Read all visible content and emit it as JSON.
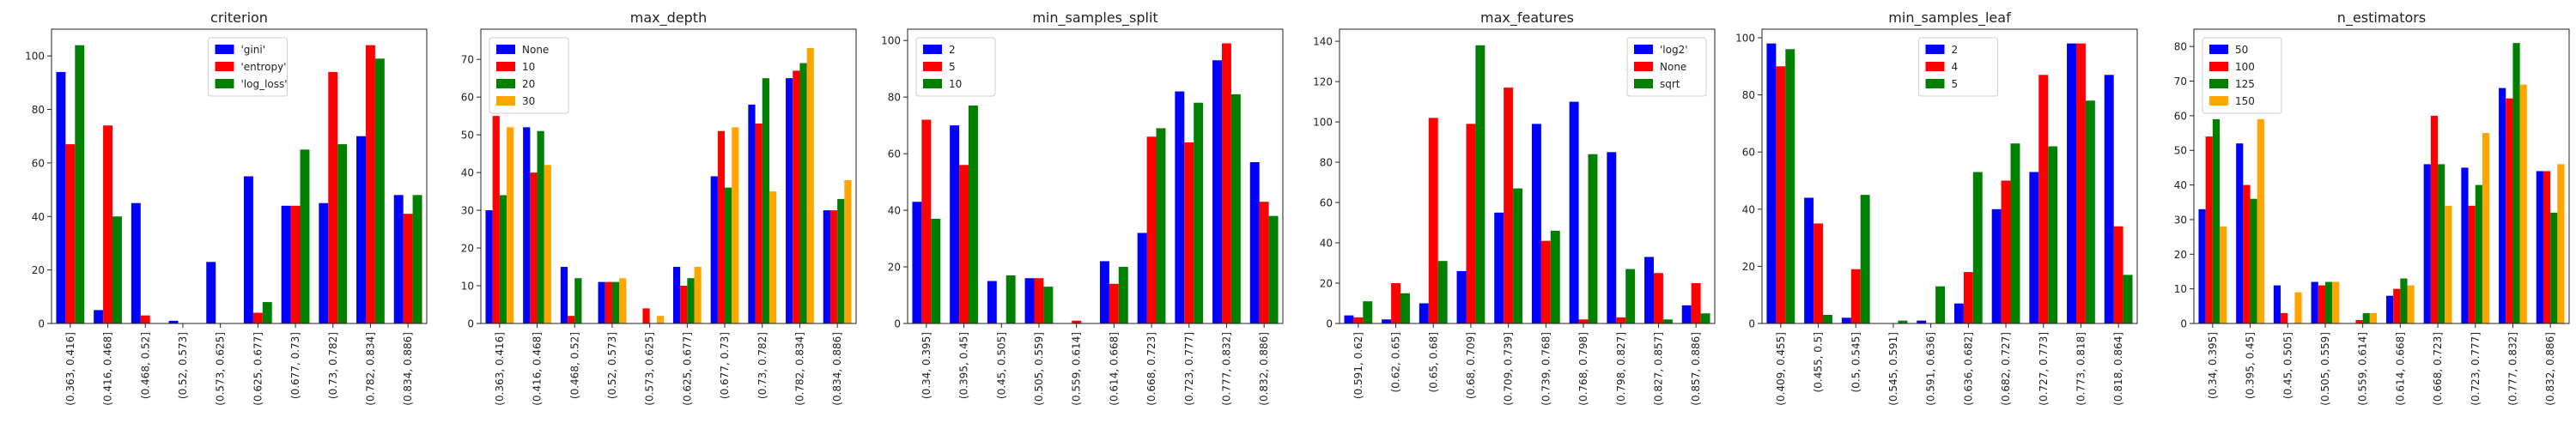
{
  "colors": {
    "blue": "#0000ff",
    "red": "#ff0000",
    "green": "#008000",
    "orange": "#ffa500"
  },
  "chart_data": [
    {
      "type": "bar",
      "title": "criterion",
      "ylim": [
        0,
        110
      ],
      "yticks": [
        0,
        20,
        40,
        60,
        80,
        100
      ],
      "legend_position": "top-center",
      "categories": [
        "(0.363, 0.416]",
        "(0.416, 0.468]",
        "(0.468, 0.52]",
        "(0.52, 0.573]",
        "(0.573, 0.625]",
        "(0.625, 0.677]",
        "(0.677, 0.73]",
        "(0.73, 0.782]",
        "(0.782, 0.834]",
        "(0.834, 0.886]"
      ],
      "series": [
        {
          "name": "'gini'",
          "color": "#0000ff",
          "values": [
            94,
            5,
            45,
            1,
            23,
            55,
            44,
            45,
            70,
            48
          ]
        },
        {
          "name": "'entropy'",
          "color": "#ff0000",
          "values": [
            67,
            74,
            3,
            0,
            0,
            4,
            44,
            94,
            104,
            41
          ]
        },
        {
          "name": "'log_loss'",
          "color": "#008000",
          "values": [
            104,
            40,
            0,
            0,
            0,
            8,
            65,
            67,
            99,
            48
          ]
        }
      ]
    },
    {
      "type": "bar",
      "title": "max_depth",
      "ylim": [
        0,
        78
      ],
      "yticks": [
        0,
        10,
        20,
        30,
        40,
        50,
        60,
        70
      ],
      "legend_position": "top-left",
      "categories": [
        "(0.363, 0.416]",
        "(0.416, 0.468]",
        "(0.468, 0.52]",
        "(0.52, 0.573]",
        "(0.573, 0.625]",
        "(0.625, 0.677]",
        "(0.677, 0.73]",
        "(0.73, 0.782]",
        "(0.782, 0.834]",
        "(0.834, 0.886]"
      ],
      "series": [
        {
          "name": "None",
          "color": "#0000ff",
          "values": [
            30,
            52,
            15,
            11,
            0,
            15,
            39,
            58,
            65,
            30
          ]
        },
        {
          "name": "10",
          "color": "#ff0000",
          "values": [
            55,
            40,
            2,
            11,
            4,
            10,
            51,
            53,
            67,
            30
          ]
        },
        {
          "name": "20",
          "color": "#008000",
          "values": [
            34,
            51,
            12,
            11,
            0,
            12,
            36,
            65,
            69,
            33
          ]
        },
        {
          "name": "30",
          "color": "#ffa500",
          "values": [
            52,
            42,
            0,
            12,
            2,
            15,
            52,
            35,
            73,
            38
          ]
        }
      ]
    },
    {
      "type": "bar",
      "title": "min_samples_split",
      "ylim": [
        0,
        104
      ],
      "yticks": [
        0,
        20,
        40,
        60,
        80,
        100
      ],
      "legend_position": "top-left",
      "categories": [
        "(0.34, 0.395]",
        "(0.395, 0.45]",
        "(0.45, 0.505]",
        "(0.505, 0.559]",
        "(0.559, 0.614]",
        "(0.614, 0.668]",
        "(0.668, 0.723]",
        "(0.723, 0.777]",
        "(0.777, 0.832]",
        "(0.832, 0.886]"
      ],
      "series": [
        {
          "name": "2",
          "color": "#0000ff",
          "values": [
            43,
            70,
            15,
            16,
            0,
            22,
            32,
            82,
            93,
            57
          ]
        },
        {
          "name": "5",
          "color": "#ff0000",
          "values": [
            72,
            56,
            0,
            16,
            1,
            14,
            66,
            64,
            99,
            43
          ]
        },
        {
          "name": "10",
          "color": "#008000",
          "values": [
            37,
            77,
            17,
            13,
            0,
            20,
            69,
            78,
            81,
            38
          ]
        }
      ]
    },
    {
      "type": "bar",
      "title": "max_features",
      "ylim": [
        0,
        146
      ],
      "yticks": [
        0,
        20,
        40,
        60,
        80,
        100,
        120,
        140
      ],
      "legend_position": "top-right",
      "categories": [
        "(0.591, 0.62]",
        "(0.62, 0.65]",
        "(0.65, 0.68]",
        "(0.68, 0.709]",
        "(0.709, 0.739]",
        "(0.739, 0.768]",
        "(0.768, 0.798]",
        "(0.798, 0.827]",
        "(0.827, 0.857]",
        "(0.857, 0.886]"
      ],
      "series": [
        {
          "name": "'log2'",
          "color": "#0000ff",
          "values": [
            4,
            2,
            10,
            26,
            55,
            99,
            110,
            85,
            33,
            9
          ]
        },
        {
          "name": "None",
          "color": "#ff0000",
          "values": [
            3,
            20,
            102,
            99,
            117,
            41,
            2,
            3,
            25,
            20
          ]
        },
        {
          "name": "sqrt",
          "color": "#008000",
          "values": [
            11,
            15,
            31,
            138,
            67,
            46,
            84,
            27,
            2,
            5
          ]
        }
      ]
    },
    {
      "type": "bar",
      "title": "min_samples_leaf",
      "ylim": [
        0,
        103
      ],
      "yticks": [
        0,
        20,
        40,
        60,
        80,
        100
      ],
      "legend_position": "top-center",
      "categories": [
        "(0.409, 0.455]",
        "(0.455, 0.5]",
        "(0.5, 0.545]",
        "(0.545, 0.591]",
        "(0.591, 0.636]",
        "(0.636, 0.682]",
        "(0.682, 0.727]",
        "(0.727, 0.773]",
        "(0.773, 0.818]",
        "(0.818, 0.864]"
      ],
      "series": [
        {
          "name": "2",
          "color": "#0000ff",
          "values": [
            98,
            44,
            2,
            0,
            1,
            7,
            40,
            53,
            98,
            87
          ]
        },
        {
          "name": "4",
          "color": "#ff0000",
          "values": [
            90,
            35,
            19,
            0,
            0,
            18,
            50,
            87,
            98,
            34
          ]
        },
        {
          "name": "5",
          "color": "#008000",
          "values": [
            96,
            3,
            45,
            1,
            13,
            53,
            63,
            62,
            78,
            17
          ]
        }
      ]
    },
    {
      "type": "bar",
      "title": "n_estimators",
      "ylim": [
        0,
        85
      ],
      "yticks": [
        0,
        10,
        20,
        30,
        40,
        50,
        60,
        70,
        80
      ],
      "legend_position": "top-left",
      "categories": [
        "(0.34, 0.395]",
        "(0.395, 0.45]",
        "(0.45, 0.505]",
        "(0.505, 0.559]",
        "(0.559, 0.614]",
        "(0.614, 0.668]",
        "(0.668, 0.723]",
        "(0.723, 0.777]",
        "(0.777, 0.832]",
        "(0.832, 0.886]"
      ],
      "series": [
        {
          "name": "50",
          "color": "#0000ff",
          "values": [
            33,
            52,
            11,
            12,
            0,
            8,
            46,
            45,
            68,
            44
          ]
        },
        {
          "name": "100",
          "color": "#ff0000",
          "values": [
            54,
            40,
            3,
            11,
            1,
            10,
            60,
            34,
            65,
            44
          ]
        },
        {
          "name": "125",
          "color": "#008000",
          "values": [
            59,
            36,
            0,
            12,
            3,
            13,
            46,
            40,
            81,
            32
          ]
        },
        {
          "name": "150",
          "color": "#ffa500",
          "values": [
            28,
            59,
            9,
            12,
            3,
            11,
            34,
            55,
            69,
            46
          ]
        }
      ]
    }
  ]
}
